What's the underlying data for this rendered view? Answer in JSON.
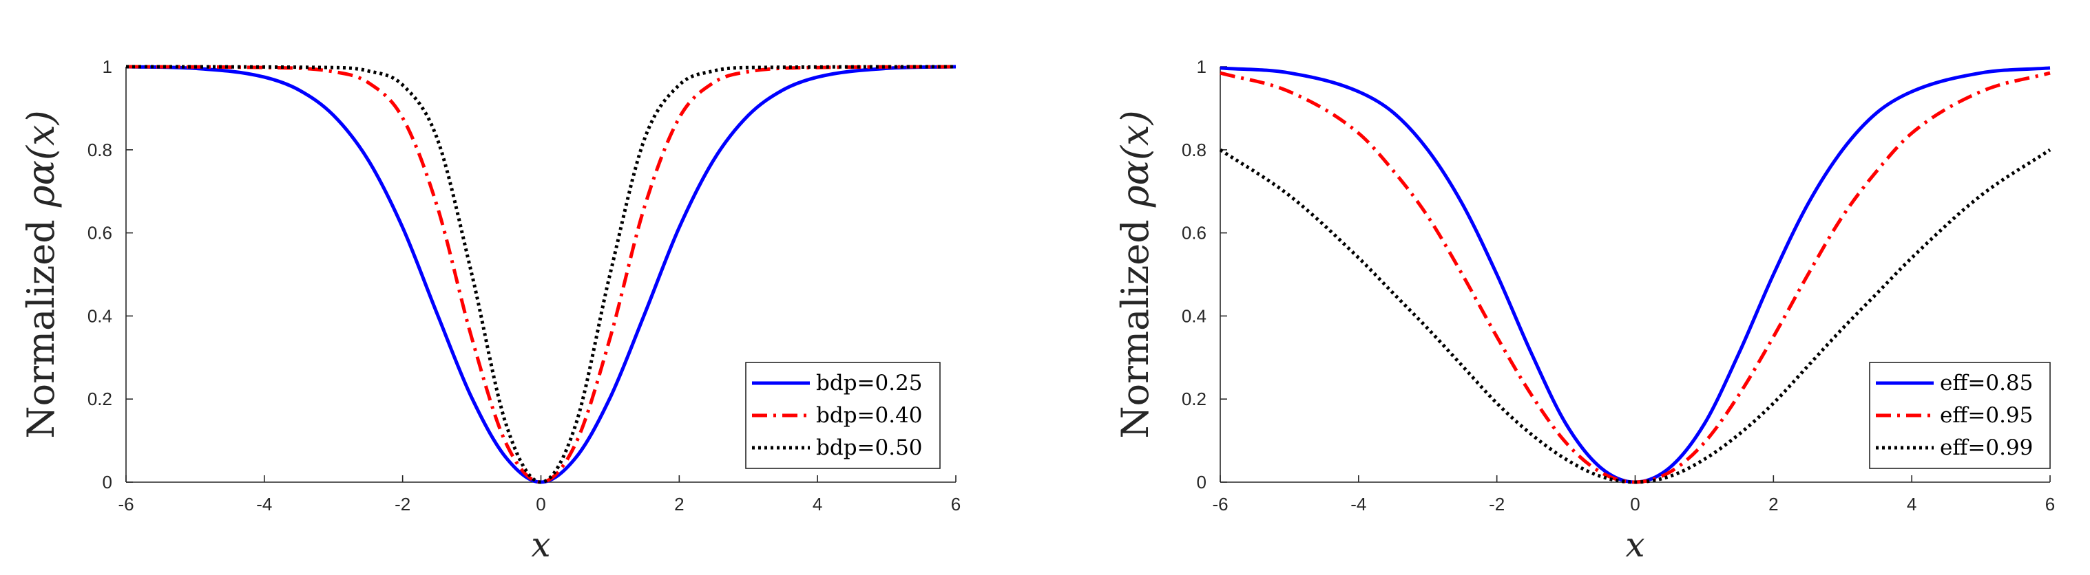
{
  "chart_data": [
    {
      "type": "line",
      "title": "",
      "xlabel": "x",
      "ylabel_text": "Normalized",
      "ylabel_math": "ρα(x)",
      "xlim": [
        -6,
        6
      ],
      "ylim": [
        0,
        1
      ],
      "xticks": [
        "-6",
        "-4",
        "-2",
        "0",
        "2",
        "4",
        "6"
      ],
      "yticks": [
        "0",
        "0.2",
        "0.4",
        "0.6",
        "0.8",
        "1"
      ],
      "legend_position": "bottom-right",
      "grid": false,
      "series": [
        {
          "name": "bdp=0.25",
          "color": "#0000ff",
          "style": "solid",
          "x": [
            -6,
            -5,
            -4,
            -3.5,
            -3,
            -2.5,
            -2,
            -1.5,
            -1,
            -0.5,
            0,
            0.5,
            1,
            1.5,
            2,
            2.5,
            3,
            3.5,
            4,
            5,
            6
          ],
          "y": [
            1.0,
            0.996,
            0.975,
            0.944,
            0.883,
            0.776,
            0.613,
            0.405,
            0.203,
            0.058,
            0.0,
            0.058,
            0.203,
            0.405,
            0.613,
            0.776,
            0.883,
            0.944,
            0.975,
            0.996,
            1.0
          ]
        },
        {
          "name": "bdp=0.40",
          "color": "#ff0000",
          "style": "dashdot",
          "x": [
            -6,
            -4,
            -3,
            -2.5,
            -2,
            -1.5,
            -1,
            -0.5,
            0,
            0.5,
            1,
            1.5,
            2,
            2.5,
            3,
            4,
            6
          ],
          "y": [
            1.0,
            0.998,
            0.988,
            0.962,
            0.877,
            0.664,
            0.347,
            0.092,
            0.0,
            0.092,
            0.347,
            0.664,
            0.877,
            0.962,
            0.988,
            0.998,
            1.0
          ]
        },
        {
          "name": "bdp=0.50",
          "color": "#000000",
          "style": "dotted",
          "x": [
            -6,
            -3,
            -2.5,
            -2,
            -1.5,
            -1,
            -0.5,
            0,
            0.5,
            1,
            1.5,
            2,
            2.5,
            3,
            6
          ],
          "y": [
            1.0,
            0.998,
            0.99,
            0.956,
            0.827,
            0.501,
            0.137,
            0.0,
            0.137,
            0.501,
            0.827,
            0.956,
            0.99,
            0.998,
            1.0
          ]
        }
      ]
    },
    {
      "type": "line",
      "title": "",
      "xlabel": "x",
      "ylabel_text": "Normalized",
      "ylabel_math": "ρα(x)",
      "xlim": [
        -6,
        6
      ],
      "ylim": [
        0,
        1
      ],
      "xticks": [
        "-6",
        "-4",
        "-2",
        "0",
        "2",
        "4",
        "6"
      ],
      "yticks": [
        "0",
        "0.2",
        "0.4",
        "0.6",
        "0.8",
        "1"
      ],
      "legend_position": "bottom-right",
      "grid": false,
      "series": [
        {
          "name": "eff=0.85",
          "color": "#0000ff",
          "style": "solid",
          "x": [
            -6,
            -5,
            -4,
            -3.5,
            -3,
            -2.5,
            -2,
            -1.5,
            -1,
            -0.5,
            0,
            0.5,
            1,
            1.5,
            2,
            2.5,
            3,
            3.5,
            4,
            5,
            6
          ],
          "y": [
            0.997,
            0.985,
            0.94,
            0.89,
            0.8,
            0.67,
            0.5,
            0.31,
            0.14,
            0.035,
            0.0,
            0.035,
            0.14,
            0.31,
            0.5,
            0.67,
            0.8,
            0.89,
            0.94,
            0.985,
            0.997
          ]
        },
        {
          "name": "eff=0.95",
          "color": "#ff0000",
          "style": "dashdot",
          "x": [
            -6,
            -5,
            -4,
            -3.5,
            -3,
            -2.5,
            -2,
            -1.5,
            -1,
            -0.5,
            0,
            0.5,
            1,
            1.5,
            2,
            2.5,
            3,
            3.5,
            4,
            5,
            6
          ],
          "y": [
            0.985,
            0.94,
            0.84,
            0.75,
            0.64,
            0.5,
            0.35,
            0.21,
            0.095,
            0.024,
            0.0,
            0.024,
            0.095,
            0.21,
            0.35,
            0.5,
            0.64,
            0.75,
            0.84,
            0.94,
            0.985
          ]
        },
        {
          "name": "eff=0.99",
          "color": "#000000",
          "style": "dotted",
          "x": [
            -6,
            -5,
            -4,
            -3.5,
            -3,
            -2.5,
            -2,
            -1.5,
            -1,
            -0.5,
            0,
            0.5,
            1,
            1.5,
            2,
            2.5,
            3,
            3.5,
            4,
            5,
            6
          ],
          "y": [
            0.8,
            0.69,
            0.54,
            0.455,
            0.37,
            0.28,
            0.19,
            0.115,
            0.055,
            0.014,
            0.0,
            0.014,
            0.055,
            0.115,
            0.19,
            0.28,
            0.37,
            0.455,
            0.54,
            0.69,
            0.8
          ]
        }
      ]
    }
  ]
}
